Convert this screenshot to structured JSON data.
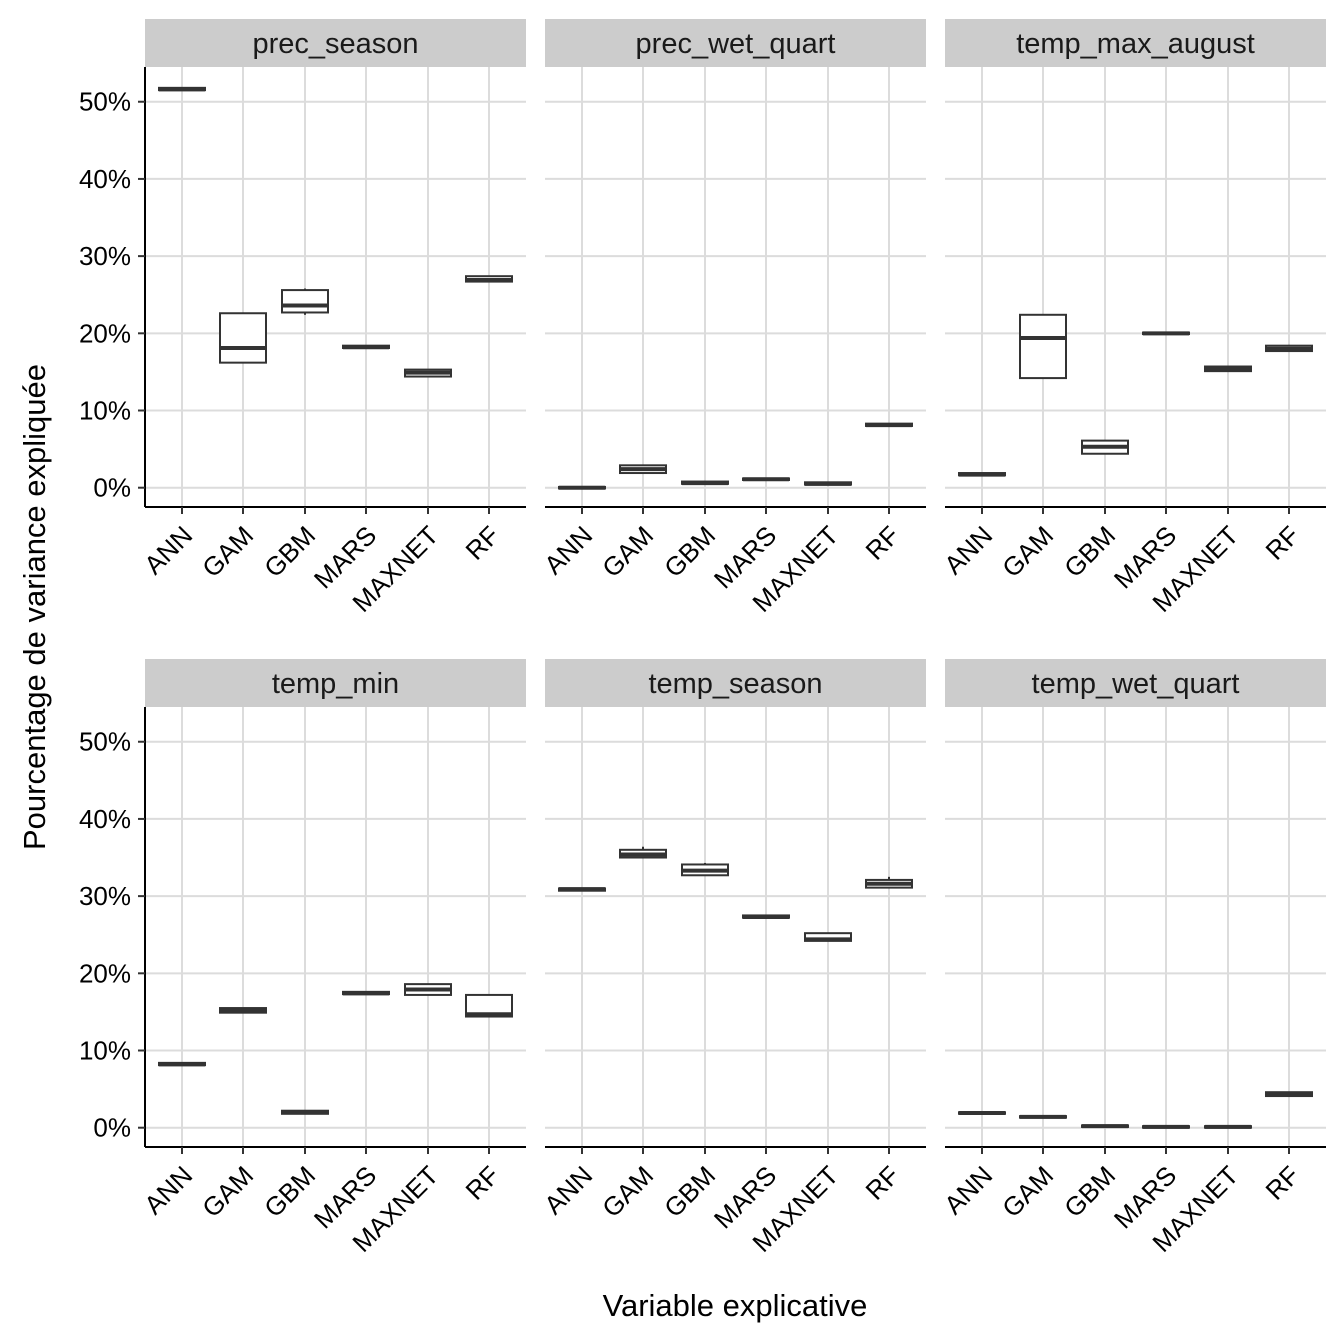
{
  "chart_data": {
    "type": "box",
    "xlabel": "Variable explicative",
    "ylabel": "Pourcentage de variance expliquée",
    "ylim": [
      -2.5,
      54.5
    ],
    "yticks": [
      0,
      10,
      20,
      30,
      40,
      50
    ],
    "ytick_labels": [
      "0%",
      "10%",
      "20%",
      "30%",
      "40%",
      "50%"
    ],
    "categories": [
      "ANN",
      "GAM",
      "GBM",
      "MARS",
      "MAXNET",
      "RF"
    ],
    "panels": [
      {
        "title": "prec_season",
        "boxes": [
          {
            "q1": 51.5,
            "median": 51.6,
            "q3": 51.8,
            "lo": 51.5,
            "hi": 51.8
          },
          {
            "q1": 16.2,
            "median": 18.1,
            "q3": 22.6,
            "lo": 16.2,
            "hi": 22.7
          },
          {
            "q1": 22.7,
            "median": 23.6,
            "q3": 25.6,
            "lo": 22.4,
            "hi": 25.8
          },
          {
            "q1": 18.1,
            "median": 18.2,
            "q3": 18.4,
            "lo": 18.1,
            "hi": 18.4
          },
          {
            "q1": 14.4,
            "median": 14.9,
            "q3": 15.3,
            "lo": 14.4,
            "hi": 15.3
          },
          {
            "q1": 26.7,
            "median": 26.9,
            "q3": 27.4,
            "lo": 26.7,
            "hi": 27.4
          }
        ]
      },
      {
        "title": "prec_wet_quart",
        "boxes": [
          {
            "q1": -0.1,
            "median": 0.0,
            "q3": 0.1,
            "lo": -0.1,
            "hi": 0.1
          },
          {
            "q1": 1.9,
            "median": 2.4,
            "q3": 2.9,
            "lo": 1.9,
            "hi": 2.9
          },
          {
            "q1": 0.5,
            "median": 0.6,
            "q3": 0.8,
            "lo": 0.5,
            "hi": 0.8
          },
          {
            "q1": 1.0,
            "median": 1.1,
            "q3": 1.2,
            "lo": 1.0,
            "hi": 1.2
          },
          {
            "q1": 0.4,
            "median": 0.5,
            "q3": 0.7,
            "lo": 0.4,
            "hi": 0.7
          },
          {
            "q1": 8.0,
            "median": 8.1,
            "q3": 8.3,
            "lo": 8.0,
            "hi": 8.3
          }
        ]
      },
      {
        "title": "temp_max_august",
        "boxes": [
          {
            "q1": 1.6,
            "median": 1.7,
            "q3": 1.9,
            "lo": 1.6,
            "hi": 1.9
          },
          {
            "q1": 14.2,
            "median": 19.4,
            "q3": 22.4,
            "lo": 14.2,
            "hi": 22.4
          },
          {
            "q1": 4.4,
            "median": 5.3,
            "q3": 6.1,
            "lo": 4.4,
            "hi": 6.1
          },
          {
            "q1": 19.9,
            "median": 20.0,
            "q3": 20.1,
            "lo": 19.9,
            "hi": 20.1
          },
          {
            "q1": 15.1,
            "median": 15.4,
            "q3": 15.7,
            "lo": 15.1,
            "hi": 15.7
          },
          {
            "q1": 17.7,
            "median": 18.0,
            "q3": 18.4,
            "lo": 17.7,
            "hi": 18.5
          }
        ]
      },
      {
        "title": "temp_min",
        "boxes": [
          {
            "q1": 8.1,
            "median": 8.2,
            "q3": 8.4,
            "lo": 8.1,
            "hi": 8.4
          },
          {
            "q1": 14.9,
            "median": 15.2,
            "q3": 15.5,
            "lo": 14.9,
            "hi": 15.5
          },
          {
            "q1": 1.8,
            "median": 2.0,
            "q3": 2.2,
            "lo": 1.8,
            "hi": 2.2
          },
          {
            "q1": 17.3,
            "median": 17.4,
            "q3": 17.6,
            "lo": 17.3,
            "hi": 17.6
          },
          {
            "q1": 17.2,
            "median": 17.9,
            "q3": 18.6,
            "lo": 17.2,
            "hi": 18.6
          },
          {
            "q1": 14.4,
            "median": 14.7,
            "q3": 17.2,
            "lo": 14.4,
            "hi": 17.2
          }
        ]
      },
      {
        "title": "temp_season",
        "boxes": [
          {
            "q1": 30.7,
            "median": 30.9,
            "q3": 31.0,
            "lo": 30.7,
            "hi": 31.0
          },
          {
            "q1": 35.0,
            "median": 35.4,
            "q3": 36.0,
            "lo": 35.0,
            "hi": 36.4
          },
          {
            "q1": 32.7,
            "median": 33.3,
            "q3": 34.1,
            "lo": 32.7,
            "hi": 34.3
          },
          {
            "q1": 27.2,
            "median": 27.3,
            "q3": 27.5,
            "lo": 27.1,
            "hi": 27.5
          },
          {
            "q1": 24.2,
            "median": 24.4,
            "q3": 25.2,
            "lo": 24.2,
            "hi": 25.2
          },
          {
            "q1": 31.1,
            "median": 31.6,
            "q3": 32.1,
            "lo": 31.1,
            "hi": 32.5
          }
        ]
      },
      {
        "title": "temp_wet_quart",
        "boxes": [
          {
            "q1": 1.8,
            "median": 1.9,
            "q3": 2.0,
            "lo": 1.8,
            "hi": 2.0
          },
          {
            "q1": 1.3,
            "median": 1.4,
            "q3": 1.5,
            "lo": 1.3,
            "hi": 1.5
          },
          {
            "q1": 0.1,
            "median": 0.2,
            "q3": 0.3,
            "lo": 0.1,
            "hi": 0.3
          },
          {
            "q1": 0.0,
            "median": 0.1,
            "q3": 0.2,
            "lo": 0.0,
            "hi": 0.2
          },
          {
            "q1": 0.0,
            "median": 0.1,
            "q3": 0.2,
            "lo": 0.0,
            "hi": 0.2
          },
          {
            "q1": 4.1,
            "median": 4.3,
            "q3": 4.6,
            "lo": 4.1,
            "hi": 4.6
          }
        ]
      }
    ]
  }
}
